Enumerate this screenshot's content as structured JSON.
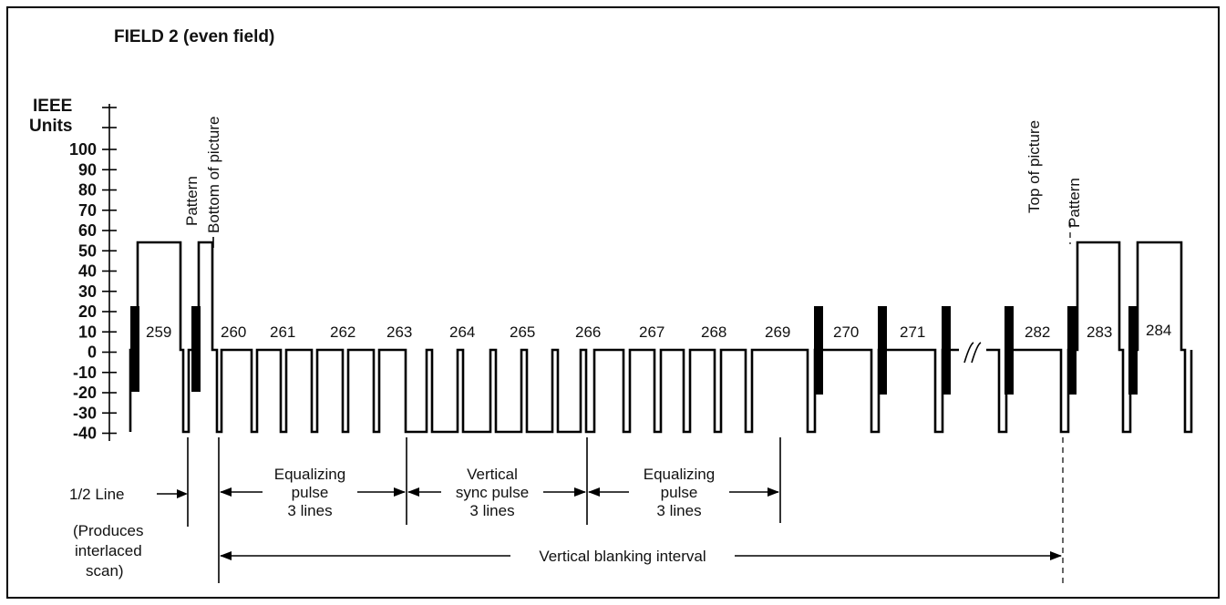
{
  "title": "FIELD 2 (even field)",
  "y_axis": {
    "label_line1": "IEEE",
    "label_line2": "Units",
    "ticks": [
      "100",
      "90",
      "80",
      "70",
      "60",
      "50",
      "40",
      "30",
      "20",
      "10",
      "0",
      "-10",
      "-20",
      "-30",
      "-40"
    ]
  },
  "line_numbers": [
    "259",
    "260",
    "261",
    "262",
    "263",
    "264",
    "265",
    "266",
    "267",
    "268",
    "269",
    "270",
    "271",
    "282",
    "283",
    "284"
  ],
  "markers": {
    "pattern_left": "Pattern",
    "bottom_of_picture": "Bottom of picture",
    "top_of_picture": "Top of picture",
    "pattern_right": "Pattern"
  },
  "annotations": {
    "half_line": "1/2 Line",
    "produces_1": "(Produces",
    "produces_2": "interlaced",
    "produces_3": "scan)",
    "eq1_1": "Equalizing",
    "eq1_2": "pulse",
    "eq1_3": "3 lines",
    "vs_1": "Vertical",
    "vs_2": "sync pulse",
    "vs_3": "3 lines",
    "eq2_1": "Equalizing",
    "eq2_2": "pulse",
    "eq2_3": "3 lines",
    "vbi": "Vertical blanking interval"
  }
}
